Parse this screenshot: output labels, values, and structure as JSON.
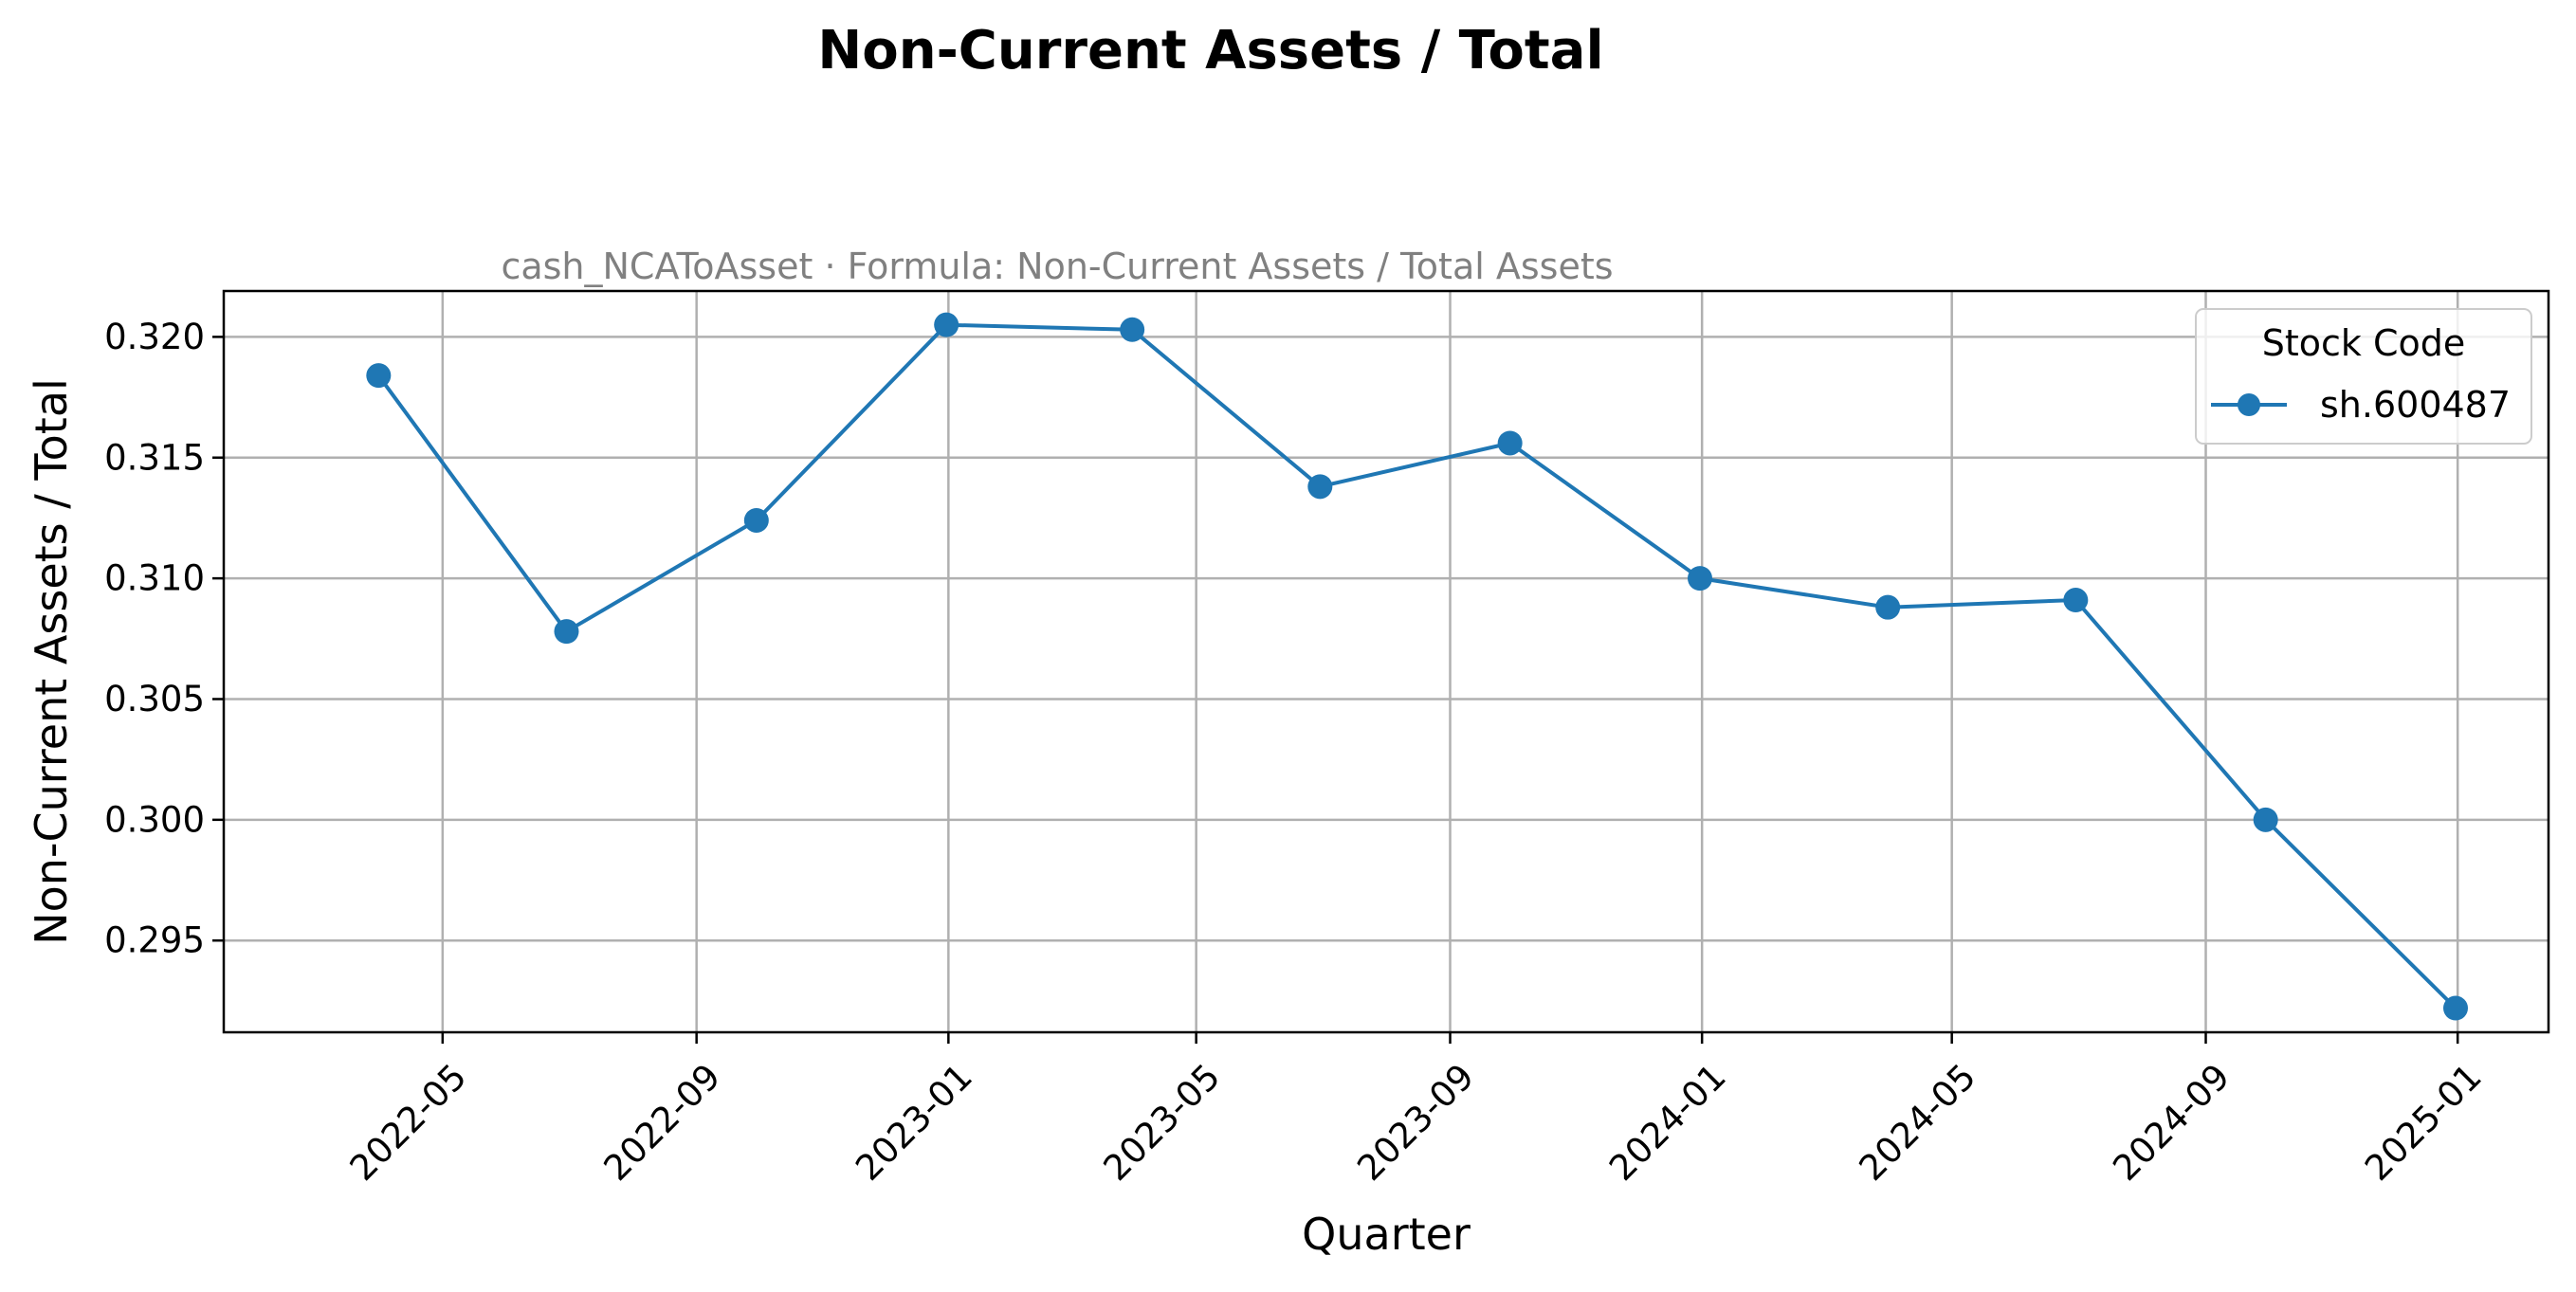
{
  "chart_data": {
    "type": "line",
    "title": "Non-Current Assets / Total",
    "subtitle": "cash_NCAToAsset · Formula: Non-Current Assets / Total Assets",
    "xlabel": "Quarter",
    "ylabel": "Non-Current Assets / Total",
    "x_ticks": [
      "2022-05",
      "2022-09",
      "2023-01",
      "2023-05",
      "2023-09",
      "2024-01",
      "2024-05",
      "2024-09",
      "2025-01"
    ],
    "y_ticks": [
      "0.295",
      "0.300",
      "0.305",
      "0.310",
      "0.315",
      "0.320"
    ],
    "xlim": [
      "2022-01-15",
      "2025-02-14"
    ],
    "ylim": [
      0.2912,
      0.3219
    ],
    "grid": true,
    "legend": {
      "title": "Stock Code",
      "placement": "top-right"
    },
    "colors": {
      "series": "#1f77b4",
      "grid": "#b0b0b0",
      "subtitle": "#808080"
    },
    "series": [
      {
        "name": "sh.600487",
        "x": [
          "2022-03-31",
          "2022-06-30",
          "2022-09-30",
          "2022-12-31",
          "2023-03-31",
          "2023-06-30",
          "2023-09-30",
          "2023-12-31",
          "2024-03-31",
          "2024-06-30",
          "2024-09-30",
          "2024-12-31"
        ],
        "values": [
          0.3184,
          0.3078,
          0.3124,
          0.3205,
          0.3203,
          0.3138,
          0.3156,
          0.31,
          0.3088,
          0.3091,
          0.3,
          0.2922
        ]
      }
    ]
  }
}
